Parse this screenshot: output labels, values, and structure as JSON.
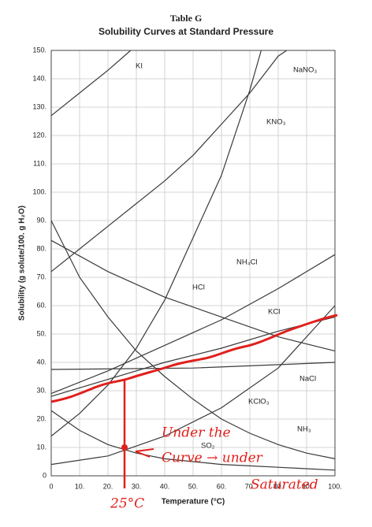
{
  "chart_data": {
    "type": "line",
    "title": "Table G",
    "subtitle": "Solubility Curves at Standard Pressure",
    "xlabel": "Temperature (°C)",
    "ylabel": "Solubility (g solute/100. g H₂O)",
    "xlim": [
      0,
      100
    ],
    "ylim": [
      0,
      150
    ],
    "grid": true,
    "xticks": [
      0,
      {
        "value": 10,
        "label": "10."
      },
      {
        "value": 20,
        "label": "20."
      },
      {
        "value": 30,
        "label": "30."
      },
      {
        "value": 40,
        "label": "40."
      },
      {
        "value": 50,
        "label": "50."
      },
      {
        "value": 60,
        "label": "60."
      },
      {
        "value": 70,
        "label": "70."
      },
      {
        "value": 80,
        "label": "80."
      },
      {
        "value": 90,
        "label": "90."
      },
      {
        "value": 100,
        "label": "100."
      }
    ],
    "yticks": [
      0,
      {
        "value": 10,
        "label": "10."
      },
      {
        "value": 20,
        "label": "20."
      },
      {
        "value": 30,
        "label": "30."
      },
      {
        "value": 40,
        "label": "40."
      },
      {
        "value": 50,
        "label": "50."
      },
      {
        "value": 60,
        "label": "60."
      },
      {
        "value": 70,
        "label": "70."
      },
      {
        "value": 80,
        "label": "80."
      },
      {
        "value": 90,
        "label": "90."
      },
      {
        "value": 100,
        "label": "100."
      },
      {
        "value": 110,
        "label": "110."
      },
      {
        "value": 120,
        "label": "120."
      },
      {
        "value": 130,
        "label": "130."
      },
      {
        "value": 140,
        "label": "140."
      },
      {
        "value": 150,
        "label": "150."
      }
    ],
    "series": [
      {
        "name": "KI",
        "color": "#3a3a3a",
        "x": [
          0,
          10,
          20,
          28
        ],
        "values": [
          127,
          135,
          143,
          150
        ]
      },
      {
        "name": "NaNO₃",
        "color": "#3a3a3a",
        "x": [
          0,
          10,
          20,
          30,
          40,
          50,
          60,
          70,
          80,
          83
        ],
        "values": [
          72,
          80,
          88,
          96,
          104,
          113,
          124,
          135,
          148,
          150
        ]
      },
      {
        "name": "KNO₃",
        "color": "#3a3a3a",
        "x": [
          0,
          10,
          20,
          30,
          40,
          50,
          60,
          70,
          74
        ],
        "values": [
          14,
          22,
          32,
          45,
          62,
          84,
          106,
          136,
          150
        ]
      },
      {
        "name": "NH₄Cl",
        "color": "#3a3a3a",
        "x": [
          0,
          20,
          40,
          60,
          80,
          100
        ],
        "values": [
          29,
          37,
          46,
          55,
          66,
          78
        ]
      },
      {
        "name": "HCl",
        "color": "#3a3a3a",
        "x": [
          0,
          20,
          40,
          60,
          80,
          100
        ],
        "values": [
          83,
          72,
          63,
          56,
          49,
          44
        ]
      },
      {
        "name": "KCl",
        "color": "#3a3a3a",
        "x": [
          0,
          20,
          40,
          60,
          80,
          100
        ],
        "values": [
          28,
          34,
          40,
          45,
          51,
          56
        ]
      },
      {
        "name": "NaCl",
        "color": "#3a3a3a",
        "x": [
          0,
          50,
          100
        ],
        "values": [
          37.5,
          38,
          40
        ]
      },
      {
        "name": "KClO₃",
        "color": "#3a3a3a",
        "x": [
          0,
          20,
          40,
          60,
          80,
          100
        ],
        "values": [
          4,
          7,
          14,
          24,
          38,
          60
        ]
      },
      {
        "name": "NH₃",
        "color": "#3a3a3a",
        "x": [
          0,
          10,
          20,
          30,
          40,
          50,
          60,
          70,
          80,
          90,
          100
        ],
        "values": [
          90,
          70,
          56,
          44,
          35,
          27,
          20,
          15,
          11,
          8,
          6
        ]
      },
      {
        "name": "SO₂",
        "color": "#3a3a3a",
        "x": [
          0,
          10,
          20,
          30,
          40,
          50,
          60,
          70,
          80,
          90,
          100
        ],
        "values": [
          23,
          16,
          11,
          8,
          6,
          5,
          4,
          3.5,
          3,
          2.5,
          2
        ]
      }
    ],
    "annotations": [
      "Under the",
      "Curve → under",
      "Saturated",
      "25°C"
    ]
  }
}
